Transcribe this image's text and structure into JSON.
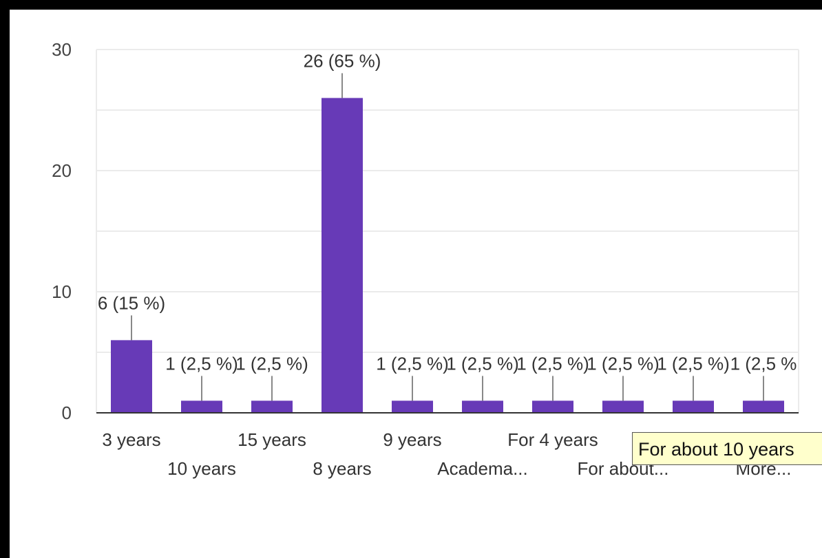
{
  "chart_data": {
    "type": "bar",
    "categories": [
      "3 years",
      "10 years",
      "15 years",
      "8 years",
      "9 years",
      "Academa...",
      "For 4 years",
      "For about...",
      "",
      "More..."
    ],
    "values": [
      6,
      1,
      1,
      26,
      1,
      1,
      1,
      1,
      1,
      1
    ],
    "data_labels": [
      "6 (15 %)",
      "1 (2,5 %)",
      "1 (2,5 %)",
      "26 (65 %)",
      "1 (2,5 %)",
      "1 (2,5 %)",
      "1 (2,5 %)",
      "1 (2,5 %)",
      "1 (2,5 %)",
      "1 (2,5 %"
    ],
    "yticks": [
      "0",
      "10",
      "20",
      "30"
    ],
    "ylim": [
      0,
      30
    ],
    "grid": true,
    "bar_color": "#673ab7"
  },
  "tooltip": {
    "text": "For about 10 years"
  }
}
